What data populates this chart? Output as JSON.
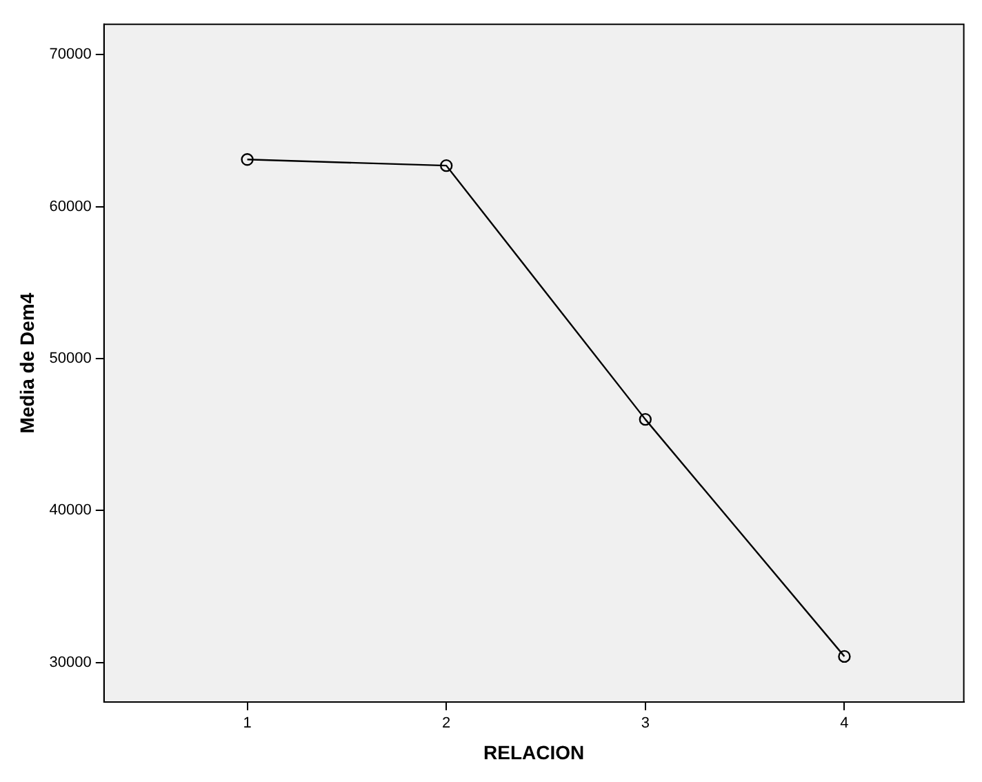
{
  "chart_data": {
    "type": "line",
    "xlabel": "RELACION",
    "ylabel": "Media de Dem4",
    "x": [
      1,
      2,
      3,
      4
    ],
    "series": [
      {
        "color": "#000000",
        "values": [
          63100,
          62700,
          46000,
          30400
        ]
      }
    ],
    "xlim": [
      0.28,
      4.6
    ],
    "xticks": [
      1,
      2,
      3,
      4
    ],
    "ylim": [
      27400,
      72000
    ],
    "yticks": [
      30000,
      40000,
      50000,
      60000,
      70000
    ],
    "grid": false,
    "legend": false,
    "marker": "circle",
    "line_style": "solid"
  }
}
